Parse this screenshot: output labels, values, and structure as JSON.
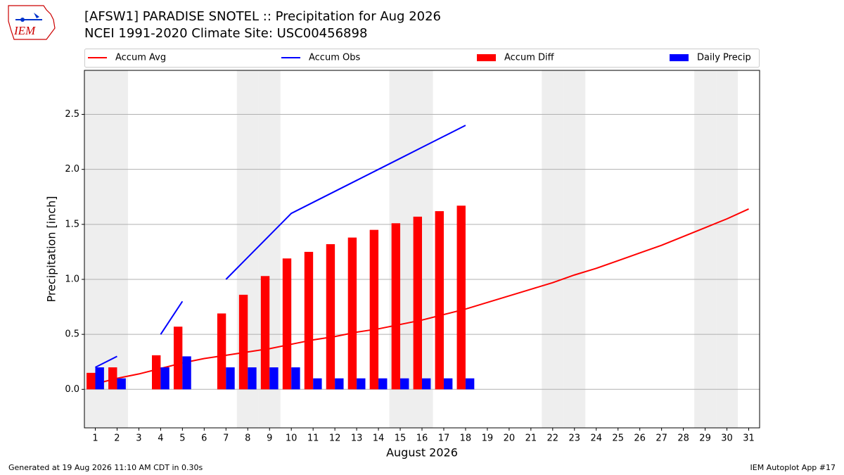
{
  "chart_data": {
    "type": "bar",
    "title": "[AFSW1] PARADISE SNOTEL :: Precipitation for Aug 2026",
    "subtitle": "NCEI 1991-2020 Climate Site: USC00456898",
    "logo_text": "IEM",
    "xlabel": "August 2026",
    "ylabel": "Precipitation [inch]",
    "footer_left": "Generated at 19 Aug 2026 11:10 AM CDT in 0.30s",
    "footer_right": "IEM Autoplot App #17",
    "x": [
      1,
      2,
      3,
      4,
      5,
      6,
      7,
      8,
      9,
      10,
      11,
      12,
      13,
      14,
      15,
      16,
      17,
      18,
      19,
      20,
      21,
      22,
      23,
      24,
      25,
      26,
      27,
      28,
      29,
      30,
      31
    ],
    "xlim": [
      0.5,
      31.5
    ],
    "xticks": [
      1,
      2,
      3,
      4,
      5,
      6,
      7,
      8,
      9,
      10,
      11,
      12,
      13,
      14,
      15,
      16,
      17,
      18,
      19,
      20,
      21,
      22,
      23,
      24,
      25,
      26,
      27,
      28,
      29,
      30,
      31
    ],
    "ylim": [
      -0.35,
      2.9
    ],
    "yticks": [
      {
        "value": 0,
        "label": "0.0"
      },
      0.5,
      {
        "value": 1,
        "label": "1.0"
      },
      1.5,
      {
        "value": 2,
        "label": "2.0"
      },
      2.5
    ],
    "grid": true,
    "weekend_days": [
      1,
      2,
      8,
      9,
      15,
      16,
      22,
      23,
      29,
      30
    ],
    "series": [
      {
        "name": "Accum Avg",
        "type": "line",
        "color": "#ff0000",
        "values": [
          0.05,
          0.1,
          0.14,
          0.19,
          0.24,
          0.28,
          0.31,
          0.34,
          0.37,
          0.41,
          0.45,
          0.48,
          0.52,
          0.55,
          0.59,
          0.63,
          0.68,
          0.73,
          0.79,
          0.85,
          0.91,
          0.97,
          1.04,
          1.1,
          1.17,
          1.24,
          1.31,
          1.39,
          1.47,
          1.55,
          1.64
        ]
      },
      {
        "name": "Accum Obs",
        "type": "line",
        "color": "#0000ff",
        "values": [
          0.2,
          0.3,
          null,
          0.5,
          0.8,
          null,
          1.0,
          1.2,
          1.4,
          1.6,
          1.7,
          1.8,
          1.9,
          2.0,
          2.1,
          2.2,
          2.3,
          2.4,
          null,
          null,
          null,
          null,
          null,
          null,
          null,
          null,
          null,
          null,
          null,
          null,
          null
        ]
      },
      {
        "name": "Accum Diff",
        "type": "bar",
        "color": "#ff0000",
        "values": [
          0.15,
          0.2,
          null,
          0.31,
          0.57,
          null,
          0.69,
          0.86,
          1.03,
          1.19,
          1.25,
          1.32,
          1.38,
          1.45,
          1.51,
          1.57,
          1.62,
          1.67,
          null,
          null,
          null,
          null,
          null,
          null,
          null,
          null,
          null,
          null,
          null,
          null,
          null
        ]
      },
      {
        "name": "Daily Precip",
        "type": "bar",
        "color": "#0000ff",
        "values": [
          0.2,
          0.1,
          null,
          0.2,
          0.3,
          null,
          0.2,
          0.2,
          0.2,
          0.2,
          0.1,
          0.1,
          0.1,
          0.1,
          0.1,
          0.1,
          0.1,
          0.1,
          null,
          null,
          null,
          null,
          null,
          null,
          null,
          null,
          null,
          null,
          null,
          null,
          null
        ]
      }
    ]
  }
}
